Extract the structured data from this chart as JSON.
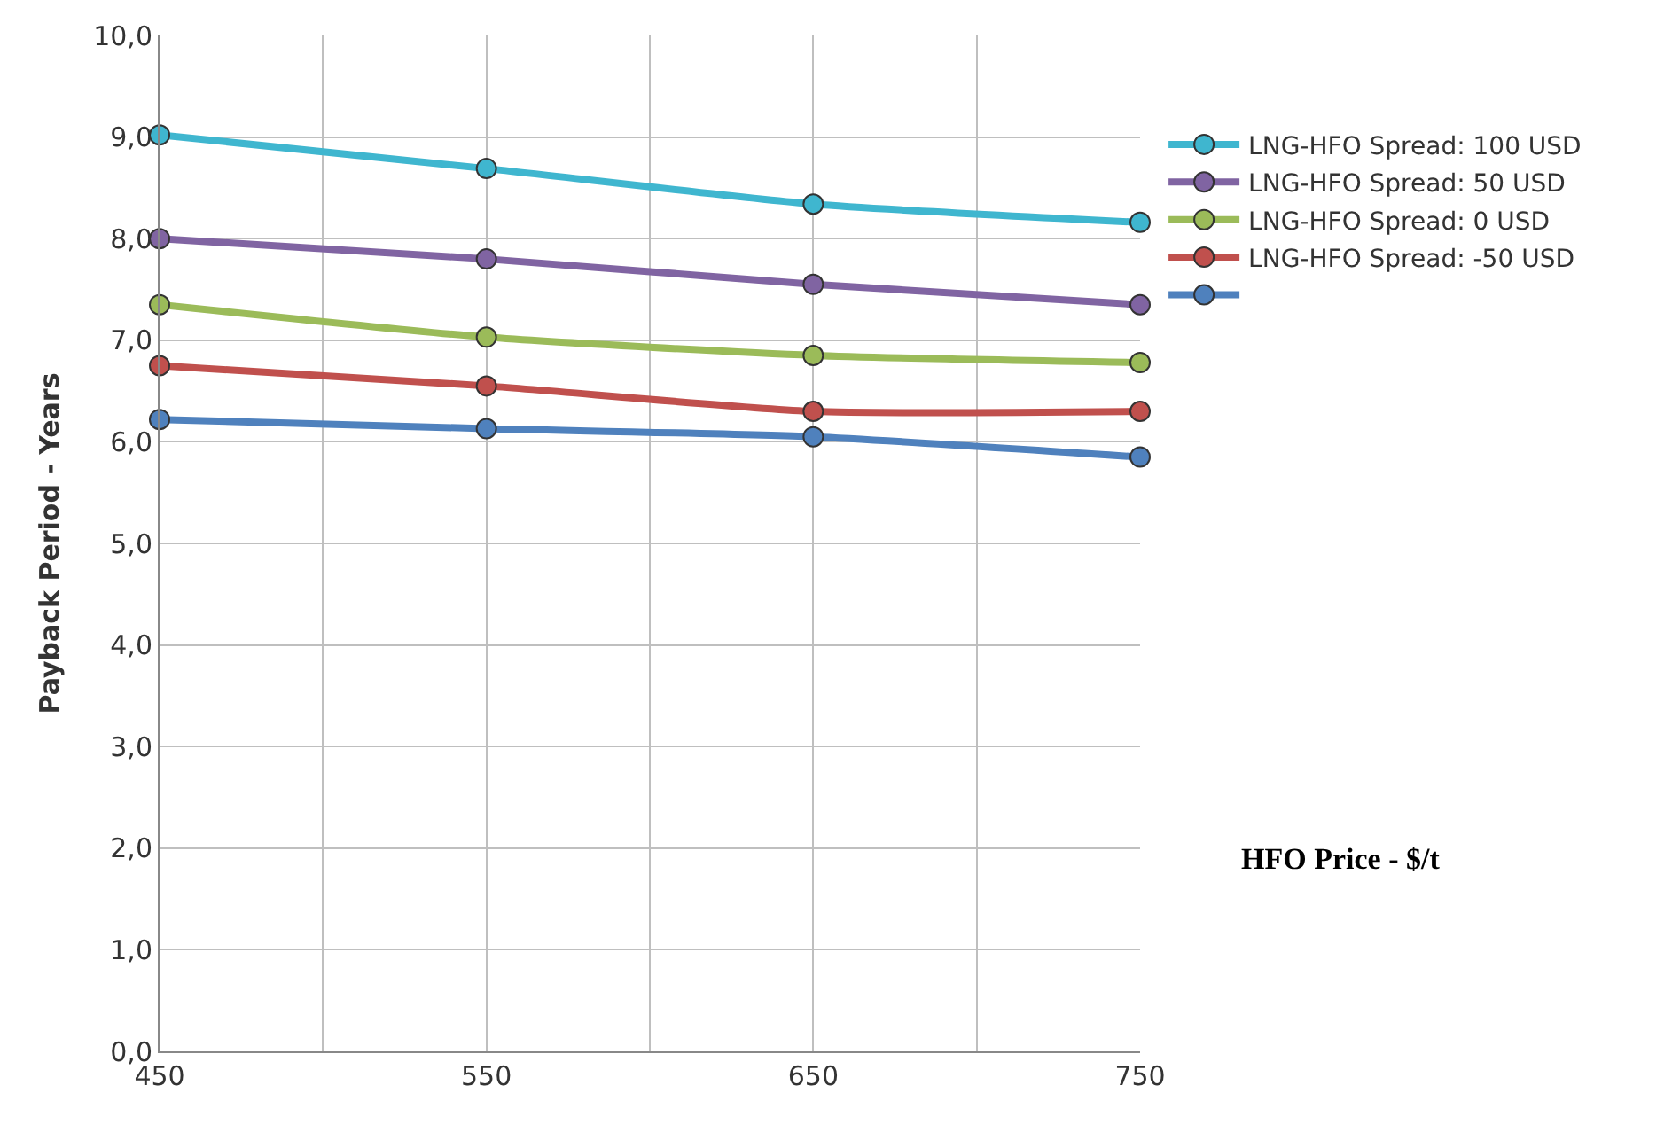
{
  "chart_data": {
    "type": "line",
    "xlabel": "HFO Price - $/t",
    "ylabel": "Payback Period - Years",
    "x": [
      450,
      550,
      650,
      750
    ],
    "series": [
      {
        "name": "LNG-HFO Spread: 100 USD",
        "color": "#3fb6cf",
        "values": [
          9.02,
          8.69,
          8.34,
          8.16
        ]
      },
      {
        "name": "LNG-HFO Spread: 50 USD",
        "color": "#8064a2",
        "values": [
          8.0,
          7.8,
          7.55,
          7.35
        ]
      },
      {
        "name": "LNG-HFO Spread: 0 USD",
        "color": "#9bbb59",
        "values": [
          7.35,
          7.03,
          6.85,
          6.78
        ]
      },
      {
        "name": "LNG-HFO Spread: -50 USD",
        "color": "#c0504d",
        "values": [
          6.75,
          6.55,
          6.3,
          6.3
        ]
      },
      {
        "color": "#4f81bd",
        "values": [
          6.22,
          6.13,
          6.05,
          5.85
        ]
      }
    ],
    "xlim": [
      450,
      750
    ],
    "xticks": [
      450,
      {
        "value": 500,
        "label": null
      },
      550,
      {
        "value": 600,
        "label": null
      },
      650,
      {
        "value": 700,
        "label": null
      },
      750
    ],
    "ylim": [
      0,
      10
    ],
    "yticks": [
      {
        "value": 0,
        "label": "0,0"
      },
      {
        "value": 1,
        "label": "1,0"
      },
      {
        "value": 2,
        "label": "2,0"
      },
      {
        "value": 3,
        "label": "3,0"
      },
      {
        "value": 4,
        "label": "4,0"
      },
      {
        "value": 5,
        "label": "5,0"
      },
      {
        "value": 6,
        "label": "6,0"
      },
      {
        "value": 7,
        "label": "7,0"
      },
      {
        "value": 8,
        "label": "8,0"
      },
      {
        "value": 9,
        "label": "9,0"
      },
      {
        "value": 10,
        "label": "10,0"
      }
    ],
    "grid": true,
    "legend": "right",
    "marker": "circle",
    "line_style": "solid"
  }
}
